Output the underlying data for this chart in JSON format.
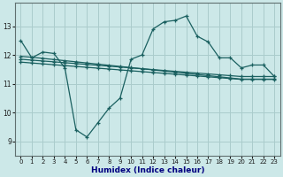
{
  "xlabel": "Humidex (Indice chaleur)",
  "bg_color": "#cce8e8",
  "grid_color": "#aacccc",
  "line_color": "#1a6060",
  "xlim": [
    -0.5,
    23.5
  ],
  "ylim": [
    8.5,
    13.8
  ],
  "xticks": [
    0,
    1,
    2,
    3,
    4,
    5,
    6,
    7,
    8,
    9,
    10,
    11,
    12,
    13,
    14,
    15,
    16,
    17,
    18,
    19,
    20,
    21,
    22,
    23
  ],
  "yticks": [
    9,
    10,
    11,
    12,
    13
  ],
  "line1_x": [
    0,
    1,
    2,
    3,
    4,
    5,
    6,
    7,
    8,
    9,
    10,
    11,
    12,
    13,
    14,
    15,
    16,
    17,
    18,
    19,
    20,
    21,
    22,
    23
  ],
  "line1_y": [
    12.5,
    11.9,
    12.1,
    12.05,
    11.55,
    9.4,
    9.15,
    9.65,
    10.15,
    10.5,
    11.85,
    12.0,
    12.9,
    13.15,
    13.2,
    13.35,
    12.65,
    12.45,
    11.9,
    11.9,
    11.55,
    11.65,
    11.65,
    11.25
  ],
  "line2_x": [
    0,
    1,
    2,
    3,
    4,
    5,
    6,
    7,
    8,
    9,
    10,
    11,
    12,
    13,
    14,
    15,
    16,
    17,
    18,
    19,
    20,
    21,
    22,
    23
  ],
  "line2_y": [
    11.95,
    11.92,
    11.88,
    11.84,
    11.8,
    11.76,
    11.72,
    11.68,
    11.64,
    11.6,
    11.56,
    11.52,
    11.48,
    11.44,
    11.4,
    11.36,
    11.32,
    11.28,
    11.24,
    11.2,
    11.16,
    11.16,
    11.16,
    11.16
  ],
  "line3_x": [
    0,
    1,
    2,
    3,
    4,
    5,
    6,
    7,
    8,
    9,
    10,
    11,
    12,
    13,
    14,
    15,
    16,
    17,
    18,
    19,
    20,
    21,
    22,
    23
  ],
  "line3_y": [
    11.75,
    11.72,
    11.69,
    11.66,
    11.63,
    11.6,
    11.57,
    11.54,
    11.51,
    11.48,
    11.45,
    11.42,
    11.39,
    11.36,
    11.33,
    11.3,
    11.27,
    11.24,
    11.21,
    11.18,
    11.15,
    11.15,
    11.15,
    11.15
  ],
  "line4_x": [
    0,
    1,
    2,
    3,
    4,
    5,
    6,
    7,
    8,
    9,
    10,
    11,
    12,
    13,
    14,
    15,
    16,
    17,
    18,
    19,
    20,
    21,
    22,
    23
  ],
  "line4_y": [
    11.85,
    11.82,
    11.79,
    11.76,
    11.73,
    11.7,
    11.67,
    11.64,
    11.61,
    11.58,
    11.55,
    11.52,
    11.49,
    11.46,
    11.43,
    11.4,
    11.37,
    11.34,
    11.31,
    11.28,
    11.25,
    11.25,
    11.25,
    11.25
  ]
}
